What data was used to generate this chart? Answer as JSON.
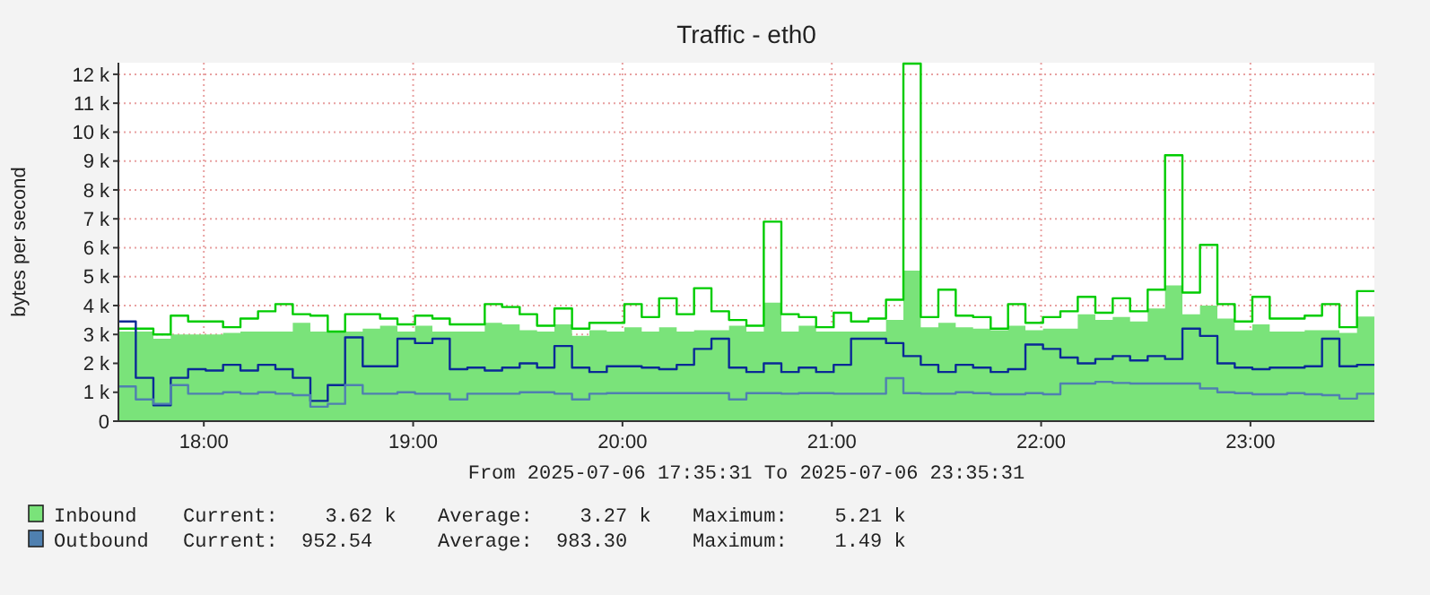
{
  "chart_data": {
    "type": "step",
    "title": "Traffic - eth0",
    "ylabel": "bytes per second",
    "x": [
      17.592,
      17.675,
      17.759,
      17.842,
      17.925,
      18.009,
      18.092,
      18.175,
      18.259,
      18.342,
      18.425,
      18.509,
      18.592,
      18.675,
      18.759,
      18.842,
      18.925,
      19.009,
      19.092,
      19.175,
      19.259,
      19.342,
      19.425,
      19.509,
      19.592,
      19.675,
      19.759,
      19.842,
      19.925,
      20.009,
      20.092,
      20.175,
      20.259,
      20.342,
      20.425,
      20.509,
      20.592,
      20.675,
      20.759,
      20.842,
      20.925,
      21.009,
      21.092,
      21.175,
      21.259,
      21.342,
      21.425,
      21.509,
      21.592,
      21.675,
      21.759,
      21.842,
      21.925,
      22.009,
      22.092,
      22.175,
      22.259,
      22.342,
      22.425,
      22.509,
      22.592,
      22.675,
      22.759,
      22.842,
      22.925,
      23.009,
      23.092,
      23.175,
      23.259,
      23.342,
      23.425,
      23.509,
      23.592
    ],
    "series": [
      {
        "name": "Inbound",
        "type": "area",
        "color": "#7ae37a",
        "values": [
          3100,
          3100,
          2850,
          3000,
          3000,
          3000,
          3050,
          3100,
          3100,
          3100,
          3400,
          3100,
          3100,
          3100,
          3200,
          3300,
          3100,
          3300,
          3100,
          3100,
          3100,
          3400,
          3350,
          3150,
          3100,
          3350,
          2950,
          3150,
          3100,
          3250,
          3100,
          3250,
          3100,
          3150,
          3150,
          3300,
          3100,
          4100,
          3100,
          3300,
          3100,
          3100,
          3100,
          3100,
          3500,
          5210,
          3250,
          3400,
          3250,
          3200,
          3150,
          3300,
          3150,
          3200,
          3200,
          3700,
          3500,
          3600,
          3450,
          3900,
          4700,
          3700,
          4000,
          3550,
          3150,
          3350,
          3100,
          3100,
          3150,
          3150,
          3050,
          3620,
          3620
        ]
      },
      {
        "color": "#00cc00",
        "values": [
          3200,
          3200,
          3000,
          3650,
          3450,
          3450,
          3250,
          3550,
          3800,
          4050,
          3700,
          3650,
          3100,
          3700,
          3700,
          3550,
          3350,
          3650,
          3550,
          3350,
          3350,
          4050,
          3950,
          3700,
          3300,
          3900,
          3200,
          3400,
          3400,
          4050,
          3600,
          4250,
          3700,
          4600,
          3800,
          3500,
          3300,
          6900,
          3700,
          3600,
          3250,
          3750,
          3450,
          3550,
          4200,
          12370,
          3600,
          4550,
          3650,
          3600,
          3200,
          4050,
          3400,
          3600,
          3800,
          4300,
          3750,
          4250,
          3800,
          4550,
          9200,
          4450,
          6100,
          4050,
          3450,
          4300,
          3550,
          3550,
          3650,
          4050,
          3250,
          4500,
          4500
        ]
      },
      {
        "color": "#0a2a96",
        "values": [
          3450,
          1500,
          550,
          1500,
          1800,
          1750,
          1950,
          1750,
          1950,
          1800,
          1500,
          700,
          1250,
          2900,
          1900,
          1900,
          2850,
          2700,
          2850,
          1800,
          1850,
          1750,
          1850,
          2000,
          1850,
          2600,
          1850,
          1700,
          1900,
          1900,
          1850,
          1800,
          1950,
          2500,
          2850,
          1850,
          1700,
          2000,
          1700,
          1850,
          1700,
          1950,
          2850,
          2850,
          2700,
          2250,
          1950,
          1700,
          1950,
          1850,
          1700,
          1800,
          2650,
          2500,
          2200,
          2000,
          2150,
          2250,
          2100,
          2250,
          2150,
          3200,
          2950,
          2000,
          1850,
          1800,
          1850,
          1850,
          1900,
          2850,
          1900,
          1950,
          1950
        ]
      },
      {
        "name": "Outbound",
        "color": "#4f80b0",
        "values": [
          1200,
          750,
          600,
          1250,
          950,
          950,
          1000,
          950,
          1000,
          950,
          900,
          500,
          600,
          1250,
          950,
          950,
          1000,
          950,
          950,
          750,
          950,
          950,
          950,
          1000,
          1000,
          950,
          750,
          950,
          970,
          970,
          970,
          970,
          970,
          970,
          970,
          750,
          970,
          970,
          950,
          970,
          970,
          950,
          950,
          950,
          1490,
          970,
          950,
          950,
          1000,
          970,
          930,
          930,
          970,
          930,
          1300,
          1300,
          1360,
          1320,
          1300,
          1300,
          1300,
          1300,
          1130,
          1000,
          970,
          930,
          930,
          970,
          930,
          900,
          780,
          950,
          950
        ]
      }
    ],
    "xlim": [
      17.592,
      23.592
    ],
    "xticks": [
      {
        "value": 18,
        "label": "18:00"
      },
      {
        "value": 19,
        "label": "19:00"
      },
      {
        "value": 20,
        "label": "20:00"
      },
      {
        "value": 21,
        "label": "21:00"
      },
      {
        "value": 22,
        "label": "22:00"
      },
      {
        "value": 23,
        "label": "23:00"
      }
    ],
    "ylim": [
      0,
      12400
    ],
    "yticks": [
      0,
      {
        "value": 1000,
        "label": "1 k"
      },
      {
        "value": 2000,
        "label": "2 k"
      },
      {
        "value": 3000,
        "label": "3 k"
      },
      {
        "value": 4000,
        "label": "4 k"
      },
      {
        "value": 5000,
        "label": "5 k"
      },
      {
        "value": 6000,
        "label": "6 k"
      },
      {
        "value": 7000,
        "label": "7 k"
      },
      {
        "value": 8000,
        "label": "8 k"
      },
      {
        "value": 9000,
        "label": "9 k"
      },
      {
        "value": 10000,
        "label": "10 k"
      },
      {
        "value": 11000,
        "label": "11 k"
      },
      {
        "value": 12000,
        "label": "12 k"
      }
    ],
    "grid": true,
    "legend": "bottom left",
    "annotations": [
      "From 2025-07-06 17:35:31 To 2025-07-06 23:35:31",
      "Current:    3.62 k",
      "Average:    3.27 k",
      "Maximum:    5.21 k",
      "Current:  952.54",
      "Average:  983.30",
      "Maximum:    1.49 k"
    ]
  }
}
